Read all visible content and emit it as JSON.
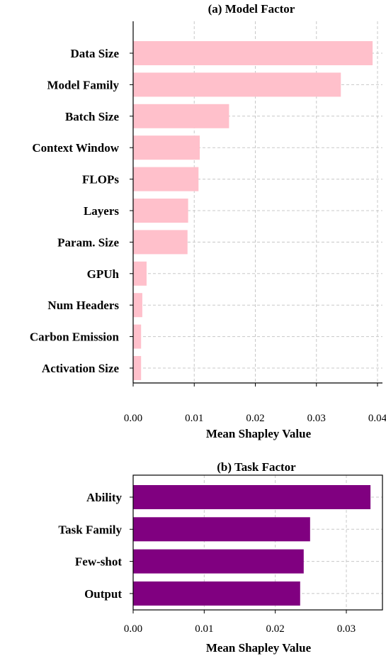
{
  "chart_data": [
    {
      "type": "bar",
      "orientation": "horizontal",
      "title": "(a) Model Factor",
      "xlabel": "Mean Shapley Value",
      "ylabel": "",
      "categories": [
        "Data Size",
        "Model Family",
        "Batch Size",
        "Context Window",
        "FLOPs",
        "Layers",
        "Param. Size",
        "GPUh",
        "Num Headers",
        "Carbon Emission",
        "Activation Size"
      ],
      "values": [
        0.0392,
        0.034,
        0.0157,
        0.0109,
        0.0107,
        0.009,
        0.0089,
        0.0022,
        0.0015,
        0.0013,
        0.0013
      ],
      "xlim": [
        0,
        0.04
      ],
      "xticks": [
        "0.00",
        "0.01",
        "0.02",
        "0.03",
        "0.04"
      ],
      "bar_color": "#ffc0cb",
      "grid": true,
      "frame": "left-bottom"
    },
    {
      "type": "bar",
      "orientation": "horizontal",
      "title": "(b) Task Factor",
      "xlabel": "Mean Shapley Value",
      "ylabel": "",
      "categories": [
        "Ability",
        "Task Family",
        "Few-shot",
        "Output"
      ],
      "values": [
        0.0334,
        0.0249,
        0.024,
        0.0235
      ],
      "xlim": [
        0,
        0.035
      ],
      "xticks": [
        "0.00",
        "0.01",
        "0.02",
        "0.03"
      ],
      "bar_color": "#800080",
      "grid": true,
      "frame": "box"
    }
  ]
}
